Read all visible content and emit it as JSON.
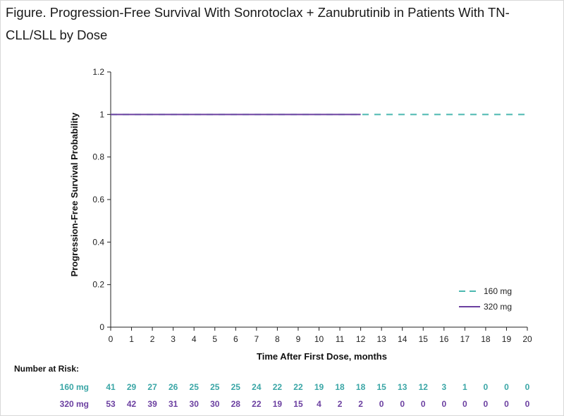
{
  "figure": {
    "title": "Figure. Progression-Free Survival With Sonrotoclax + Zanubrutinib in Patients With TN-CLL/SLL by Dose"
  },
  "chart_data": {
    "type": "line",
    "xlabel": "Time After First Dose, months",
    "ylabel": "Progression-Free Survival Probability",
    "xlim": [
      0,
      20
    ],
    "ylim": [
      0,
      1.2
    ],
    "x_ticks": [
      0,
      1,
      2,
      3,
      4,
      5,
      6,
      7,
      8,
      9,
      10,
      11,
      12,
      13,
      14,
      15,
      16,
      17,
      18,
      19,
      20
    ],
    "y_ticks": [
      0,
      0.2,
      0.4,
      0.6,
      0.8,
      1,
      1.2
    ],
    "y_tick_labels": [
      "0",
      "0.2",
      "0.4",
      "0.6",
      "0.8",
      "1",
      "1.2"
    ],
    "legend_position": "bottom-right",
    "grid": false,
    "series": [
      {
        "name": "160 mg",
        "color": "#4bb8b0",
        "style": "dashed",
        "x": [
          0,
          20
        ],
        "y": [
          1,
          1
        ]
      },
      {
        "name": "320 mg",
        "color": "#6b3fa0",
        "style": "solid",
        "x": [
          0,
          12
        ],
        "y": [
          1,
          1
        ]
      }
    ],
    "risk_table": {
      "header": "Number at Risk:",
      "rows": [
        {
          "label": "160 mg",
          "color": "#3aa6a6",
          "values": [
            41,
            29,
            27,
            26,
            25,
            25,
            25,
            24,
            22,
            22,
            19,
            18,
            18,
            15,
            13,
            12,
            3,
            1,
            0,
            0,
            0
          ]
        },
        {
          "label": "320 mg",
          "color": "#6b3fa0",
          "values": [
            53,
            42,
            39,
            31,
            30,
            30,
            28,
            22,
            19,
            15,
            4,
            2,
            2,
            0,
            0,
            0,
            0,
            0,
            0,
            0,
            0
          ]
        }
      ]
    }
  }
}
